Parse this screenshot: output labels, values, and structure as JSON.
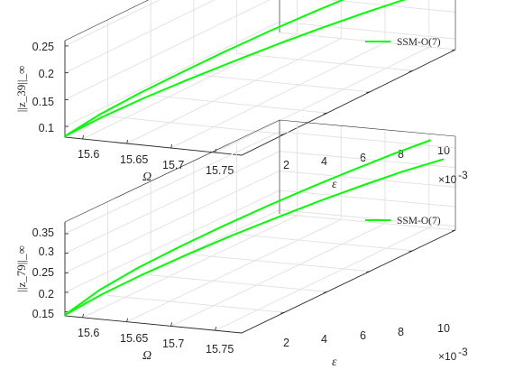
{
  "chart_data": [
    {
      "type": "line",
      "view": "3d",
      "xlabel": "Ω",
      "ylabel": "ε",
      "zlabel": "||z_39||_∞",
      "xlim": [
        15.58,
        15.78
      ],
      "ylim": [
        0,
        0.01
      ],
      "zlim": [
        0.08,
        0.26
      ],
      "x_ticks": [
        "15.6",
        "15.65",
        "15.7",
        "15.75"
      ],
      "y_ticks": [
        "2",
        "4",
        "6",
        "8",
        "10"
      ],
      "y_exponent": "×10",
      "y_exponent_power": "-3",
      "z_ticks": [
        "0.1",
        "0.15",
        "0.2",
        "0.25"
      ],
      "grid": true,
      "legend_position": "top-right",
      "series": [
        {
          "name": "SSM-O(7)",
          "color": "#00ff00",
          "branches": [
            {
              "omega": [
                15.58,
                15.6,
                15.62,
                15.64,
                15.66,
                15.68,
                15.7,
                15.72,
                15.74,
                15.76,
                15.775
              ],
              "epsilon": [
                0,
                0.0008,
                0.0018,
                0.0029,
                0.0041,
                0.0054,
                0.0066,
                0.0077,
                0.0087,
                0.0096,
                0.01
              ],
              "amplitude": [
                0.082,
                0.11,
                0.133,
                0.153,
                0.172,
                0.189,
                0.204,
                0.218,
                0.231,
                0.243,
                0.251
              ]
            },
            {
              "omega": [
                15.58,
                15.6,
                15.62,
                15.64,
                15.66,
                15.68,
                15.7,
                15.72,
                15.74,
                15.76
              ],
              "epsilon": [
                0,
                0.0009,
                0.002,
                0.0032,
                0.0045,
                0.0058,
                0.007,
                0.0081,
                0.0091,
                0.01
              ],
              "amplitude": [
                0.082,
                0.103,
                0.12,
                0.134,
                0.146,
                0.157,
                0.167,
                0.176,
                0.184,
                0.19
              ]
            }
          ]
        }
      ]
    },
    {
      "type": "line",
      "view": "3d",
      "xlabel": "Ω",
      "ylabel": "ε",
      "zlabel": "||z_79||_∞",
      "xlim": [
        15.58,
        15.78
      ],
      "ylim": [
        0,
        0.01
      ],
      "zlim": [
        0.14,
        0.38
      ],
      "x_ticks": [
        "15.6",
        "15.65",
        "15.7",
        "15.75"
      ],
      "y_ticks": [
        "2",
        "4",
        "6",
        "8",
        "10"
      ],
      "y_exponent": "×10",
      "y_exponent_power": "-3",
      "z_ticks": [
        "0.15",
        "0.2",
        "0.25",
        "0.3",
        "0.35"
      ],
      "grid": true,
      "legend_position": "top-right",
      "series": [
        {
          "name": "SSM-O(7)",
          "color": "#00ff00",
          "branches": [
            {
              "omega": [
                15.58,
                15.6,
                15.62,
                15.64,
                15.66,
                15.68,
                15.7,
                15.72,
                15.74,
                15.76
              ],
              "epsilon": [
                0,
                0.0008,
                0.0018,
                0.0029,
                0.0041,
                0.0054,
                0.0066,
                0.0077,
                0.0087,
                0.0096
              ],
              "amplitude": [
                0.142,
                0.19,
                0.226,
                0.255,
                0.281,
                0.304,
                0.325,
                0.344,
                0.362,
                0.378
              ]
            },
            {
              "omega": [
                15.58,
                15.6,
                15.62,
                15.64,
                15.66,
                15.68,
                15.7,
                15.72,
                15.74,
                15.765
              ],
              "epsilon": [
                0,
                0.0009,
                0.002,
                0.0032,
                0.0045,
                0.0058,
                0.007,
                0.0081,
                0.0091,
                0.01
              ],
              "amplitude": [
                0.142,
                0.176,
                0.203,
                0.226,
                0.246,
                0.263,
                0.279,
                0.293,
                0.306,
                0.32
              ]
            }
          ]
        }
      ]
    }
  ]
}
